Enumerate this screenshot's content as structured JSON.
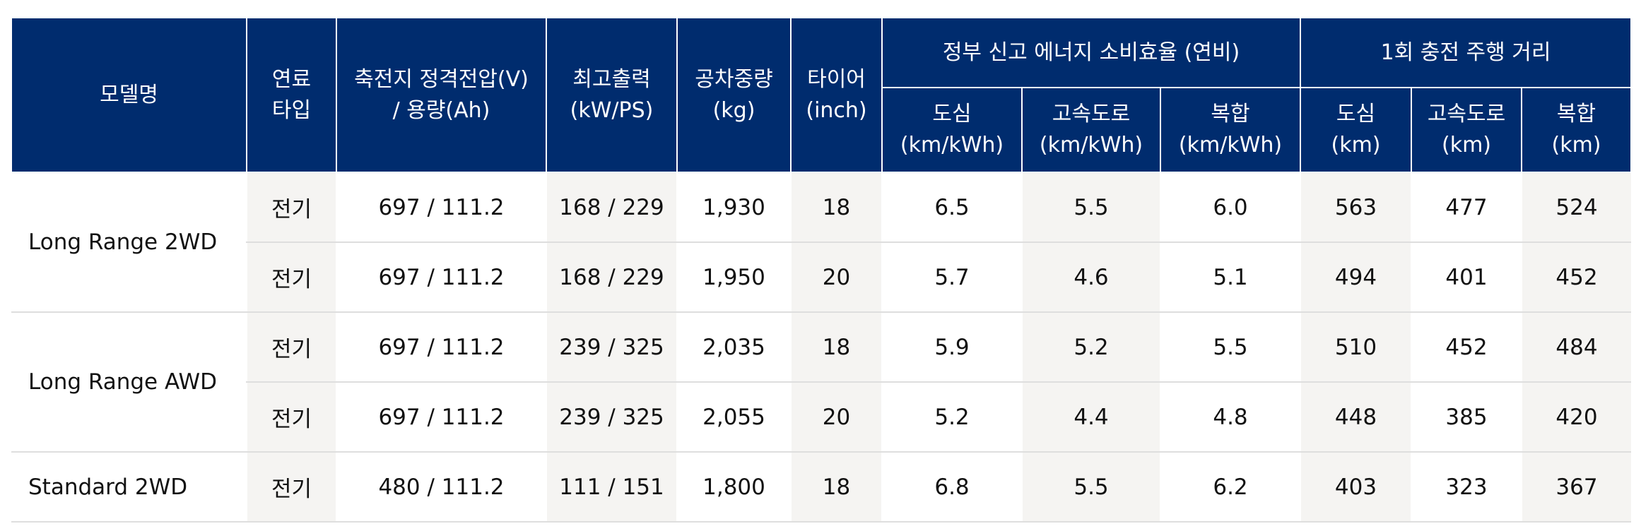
{
  "table": {
    "header": {
      "top": [
        "모델명",
        "연료\n타입",
        "축전지 정격전압(V)\n/ 용량(Ah)",
        "최고출력\n(kW/PS)",
        "공차중량\n(kg)",
        "타이어\n(inch)",
        "정부 신고 에너지 소비효율 (연비)",
        "1회 충전 주행 거리"
      ],
      "sub": [
        "도심\n(km/kWh)",
        "고속도로\n(km/kWh)",
        "복합\n(km/kWh)",
        "도심\n(km)",
        "고속도로\n(km)",
        "복합\n(km)"
      ]
    },
    "groups": [
      {
        "model": "Long Range 2WD",
        "rows": [
          [
            "전기",
            "697 / 111.2",
            "168 / 229",
            "1,930",
            "18",
            "6.5",
            "5.5",
            "6.0",
            "563",
            "477",
            "524"
          ],
          [
            "전기",
            "697 / 111.2",
            "168 / 229",
            "1,950",
            "20",
            "5.7",
            "4.6",
            "5.1",
            "494",
            "401",
            "452"
          ]
        ]
      },
      {
        "model": "Long Range AWD",
        "rows": [
          [
            "전기",
            "697 / 111.2",
            "239 / 325",
            "2,035",
            "18",
            "5.9",
            "5.2",
            "5.5",
            "510",
            "452",
            "484"
          ],
          [
            "전기",
            "697 / 111.2",
            "239 / 325",
            "2,055",
            "20",
            "5.2",
            "4.4",
            "4.8",
            "448",
            "385",
            "420"
          ]
        ]
      },
      {
        "model": "Standard 2WD",
        "rows": [
          [
            "전기",
            "480 / 111.2",
            "111 / 151",
            "1,800",
            "18",
            "6.8",
            "5.5",
            "6.2",
            "403",
            "323",
            "367"
          ]
        ]
      }
    ]
  }
}
